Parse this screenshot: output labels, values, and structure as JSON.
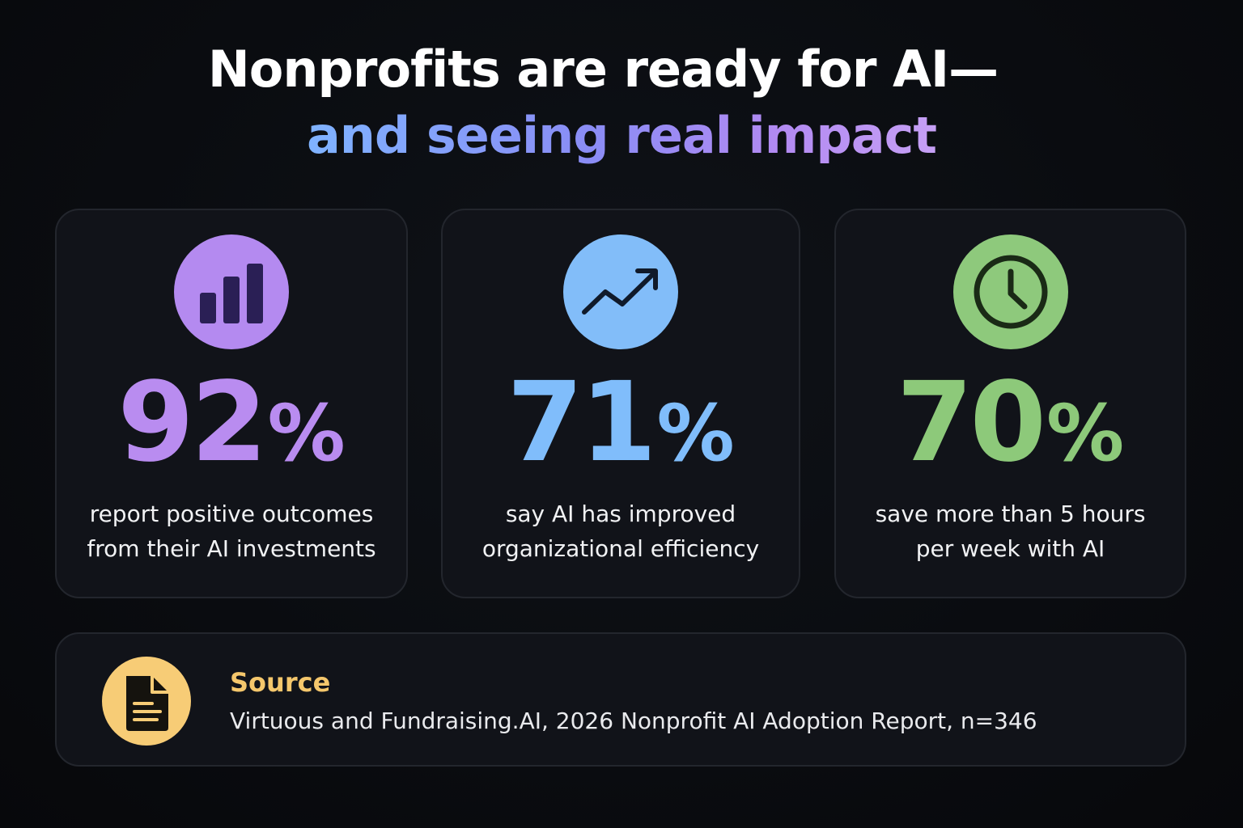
{
  "headline": {
    "line1": "Nonprofits are ready for AI—",
    "line2": "and seeing real impact"
  },
  "stats": [
    {
      "value": "92",
      "unit": "%",
      "percent": 92,
      "line1": "report positive outcomes",
      "line2": "from their AI investments",
      "icon": "bar-chart-icon",
      "color": "#b98cf0",
      "icon_bg": "#b48af0",
      "icon_fg": "#2a1f55"
    },
    {
      "value": "71",
      "unit": "%",
      "percent": 71,
      "line1": "say AI has improved",
      "line2": "organizational efficiency",
      "icon": "trending-up-icon",
      "color": "#80bdfb",
      "icon_bg": "#82bdf9",
      "icon_fg": "#101a2a"
    },
    {
      "value": "70",
      "unit": "%",
      "percent": 70,
      "line1": "save more than 5 hours",
      "line2": "per week with AI",
      "icon": "clock-icon",
      "color": "#8dc97a",
      "icon_bg": "#8ec97c",
      "icon_fg": "#1a2a16"
    }
  ],
  "source": {
    "label": "Source",
    "text": "Virtuous and Fundraising.AI, 2026 Nonprofit AI Adoption Report, n=346",
    "icon": "document-icon",
    "color": "#f5c76c"
  }
}
